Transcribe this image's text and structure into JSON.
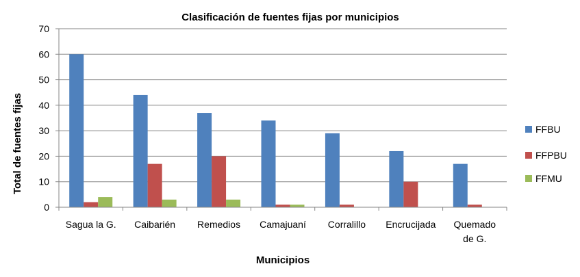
{
  "chart_data": {
    "type": "bar",
    "title": "Clasificación de fuentes fijas por municipios",
    "xlabel": "Municipios",
    "ylabel": "Total de fuentes fijas",
    "ylim": [
      0,
      70
    ],
    "yticks": [
      0,
      10,
      20,
      30,
      40,
      50,
      60,
      70
    ],
    "grid": true,
    "legend_position": "right",
    "categories": [
      "Sagua la G.",
      "Caibarién",
      "Remedios",
      "Camajuaní",
      "Corralillo",
      "Encrucijada",
      "Quemado de G."
    ],
    "series": [
      {
        "name": "FFBU",
        "color": "#4F81BD",
        "values": [
          60,
          44,
          37,
          34,
          29,
          22,
          17
        ]
      },
      {
        "name": "FFPBU",
        "color": "#C0504D",
        "values": [
          2,
          17,
          20,
          1,
          1,
          10,
          1
        ]
      },
      {
        "name": "FFMU",
        "color": "#9BBB59",
        "values": [
          4,
          3,
          3,
          1,
          0,
          0,
          0
        ]
      }
    ]
  }
}
